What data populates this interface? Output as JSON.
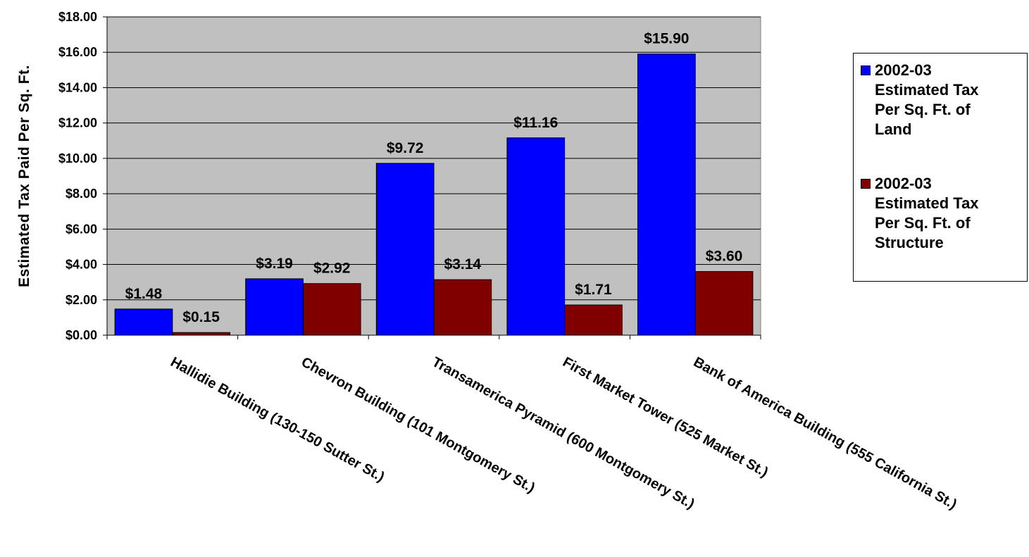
{
  "chart_data": {
    "type": "bar",
    "ylabel": "Estimated Tax Paid Per Sq. Ft.",
    "xlabel": "",
    "ylim": [
      0,
      18
    ],
    "yticks": [
      "$0.00",
      "$2.00",
      "$4.00",
      "$6.00",
      "$8.00",
      "$10.00",
      "$12.00",
      "$14.00",
      "$16.00",
      "$18.00"
    ],
    "categories": [
      "Hallidie Building (130-150 Sutter St.)",
      "Chevron Building (101 Montgomery St.)",
      "Transamerica Pyramid (600 Montgomery St.)",
      "First Market Tower (525 Market St.)",
      "Bank of America Building (555 California St.)"
    ],
    "series": [
      {
        "name": "2002-03 Estimated Tax Per Sq. Ft. of Land",
        "color": "#0000ff",
        "values": [
          1.48,
          3.19,
          9.72,
          11.16,
          15.9
        ],
        "labels": [
          "$1.48",
          "$3.19",
          "$9.72",
          "$11.16",
          "$15.90"
        ]
      },
      {
        "name": "2002-03 Estimated Tax Per Sq. Ft. of Structure",
        "color": "#800000",
        "values": [
          0.15,
          2.92,
          3.14,
          1.71,
          3.6
        ],
        "labels": [
          "$0.15",
          "$2.92",
          "$3.14",
          "$1.71",
          "$3.60"
        ]
      }
    ],
    "legend_position": "right",
    "plot_background": "#c0c0c0",
    "grid": true
  },
  "legend": {
    "items": [
      {
        "lines": [
          "2002-03",
          "Estimated Tax",
          "Per Sq. Ft. of",
          "Land"
        ],
        "color": "#0000ff"
      },
      {
        "lines": [
          "2002-03",
          "Estimated Tax",
          "Per Sq. Ft. of",
          "Structure"
        ],
        "color": "#800000"
      }
    ]
  }
}
